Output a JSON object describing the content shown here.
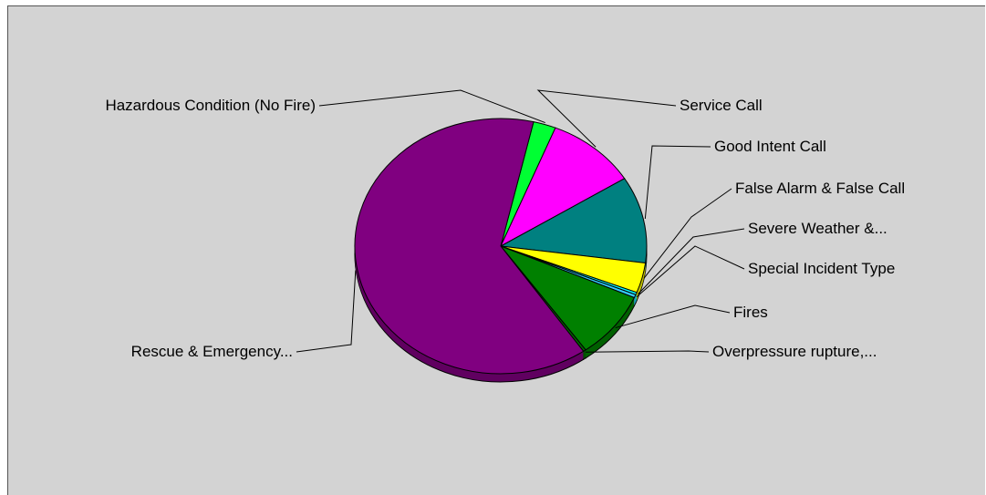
{
  "chart_data": {
    "type": "pie",
    "style": "3d",
    "title": "",
    "slices": [
      {
        "label": "Hazardous Condition (No Fire)",
        "value": 2.5,
        "color": "#00ff33"
      },
      {
        "label": "Service Call",
        "value": 10.0,
        "color": "#ff00ff"
      },
      {
        "label": "Good Intent Call",
        "value": 11.0,
        "color": "#008080"
      },
      {
        "label": "False Alarm & False Call",
        "value": 3.8,
        "color": "#ffff00"
      },
      {
        "label": "Severe Weather &...",
        "value": 0.3,
        "color": "#00ffff"
      },
      {
        "label": "Special Incident Type",
        "value": 0.4,
        "color": "#33ccff"
      },
      {
        "label": "Fires",
        "value": 8.5,
        "color": "#008000"
      },
      {
        "label": "Overpressure rupture,...",
        "value": 0.3,
        "color": "#006600"
      },
      {
        "label": "Rescue & Emergency...",
        "value": 63.2,
        "color": "#800080"
      }
    ]
  }
}
